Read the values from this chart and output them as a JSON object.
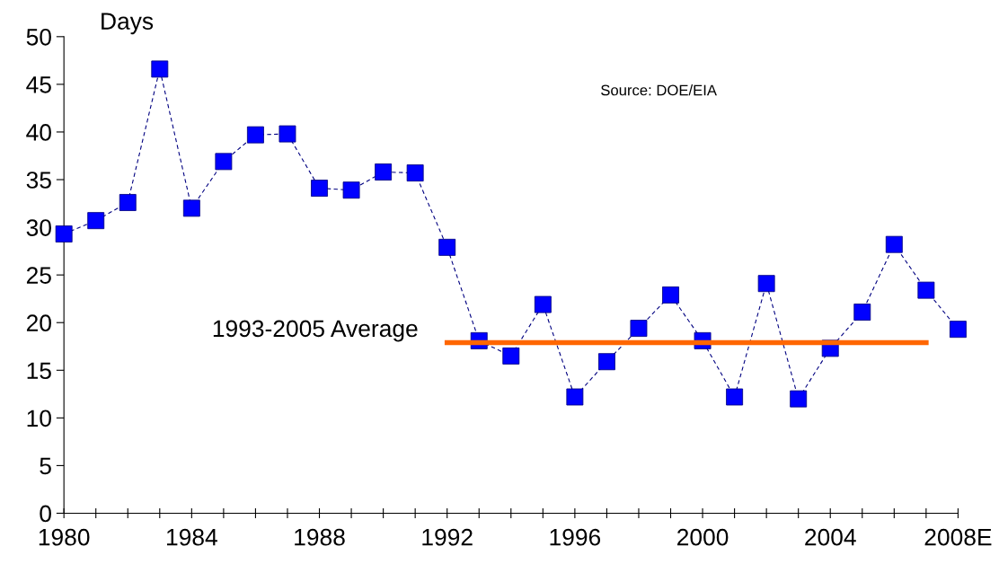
{
  "chart_data": {
    "type": "line",
    "ylabel": "Days",
    "categories": [
      "1980",
      null,
      null,
      null,
      "1984",
      null,
      null,
      null,
      "1988",
      null,
      null,
      null,
      "1992",
      null,
      null,
      null,
      "1996",
      null,
      null,
      null,
      "2000",
      null,
      null,
      null,
      "2004",
      null,
      null,
      null,
      "2008E"
    ],
    "series": [
      {
        "color": "#0000ff",
        "marker": "square",
        "line_style": "dashed",
        "values": [
          29.3,
          30.7,
          32.6,
          46.6,
          32.0,
          36.9,
          39.7,
          39.8,
          34.1,
          33.9,
          35.8,
          35.7,
          27.9,
          18.1,
          16.5,
          21.9,
          12.2,
          15.9,
          19.4,
          22.9,
          18.1,
          12.2,
          24.1,
          12.0,
          17.3,
          21.1,
          28.2,
          23.4,
          19.3
        ]
      },
      {
        "name": "1993-2005 Average",
        "color": "#ff6600",
        "marker": "none",
        "line_style": "solid",
        "values": [
          null,
          null,
          null,
          null,
          null,
          null,
          null,
          null,
          null,
          null,
          null,
          null,
          17.9,
          17.9,
          17.9,
          17.9,
          17.9,
          17.9,
          17.9,
          17.9,
          17.9,
          17.9,
          17.9,
          17.9,
          17.9,
          17.9,
          17.9,
          17.9,
          null
        ]
      }
    ],
    "ylim": [
      0,
      50
    ],
    "yticks": [
      0,
      5,
      10,
      15,
      20,
      25,
      30,
      35,
      40,
      45,
      50
    ],
    "grid": false,
    "legend": false,
    "annotations": [
      "Source: DOE/EIA"
    ]
  }
}
